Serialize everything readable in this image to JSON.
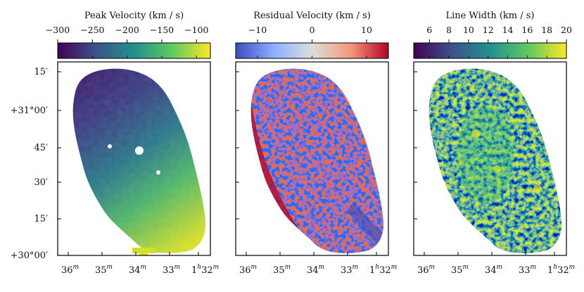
{
  "figure": {
    "panels": [
      {
        "id": "peak",
        "colorbar_label": "Peak Velocity (km / s)",
        "colorbar_ticks": [
          "−300",
          "−250",
          "−200",
          "−150",
          "−100"
        ],
        "colorbar_tick_values": [
          -300,
          -250,
          -200,
          -150,
          -100
        ],
        "colorbar_range": [
          -300,
          -80
        ],
        "colormap": "viridis",
        "colormap_stops": [
          "#440154",
          "#3b528b",
          "#21918c",
          "#5ec962",
          "#fde725"
        ]
      },
      {
        "id": "residual",
        "colorbar_label": "Residual Velocity (km / s)",
        "colorbar_ticks": [
          "−10",
          "0",
          "10"
        ],
        "colorbar_tick_values": [
          -10,
          0,
          10
        ],
        "colorbar_range": [
          -14,
          14
        ],
        "colormap": "coolwarm",
        "colormap_stops": [
          "#3b4cc0",
          "#8db0fe",
          "#dddddd",
          "#f49a7b",
          "#b40426"
        ]
      },
      {
        "id": "width",
        "colorbar_label": "Line Width (km / s)",
        "colorbar_ticks": [
          "6",
          "8",
          "10",
          "12",
          "14",
          "16",
          "18",
          "20"
        ],
        "colorbar_tick_values": [
          6,
          8,
          10,
          12,
          14,
          16,
          18,
          20
        ],
        "colorbar_range": [
          4.4,
          20
        ],
        "colormap": "viridis",
        "colormap_stops": [
          "#440154",
          "#3b528b",
          "#21918c",
          "#5ec962",
          "#fde725"
        ]
      }
    ],
    "y_ticks": [
      "15′",
      "+31°00′",
      "45′",
      "30′",
      "15′",
      "+30°00′"
    ],
    "x_ticks": [
      {
        "main": "36",
        "sup": "m"
      },
      {
        "main": "35",
        "sup": "m"
      },
      {
        "main": "34",
        "sup": "m"
      },
      {
        "main": "33",
        "sup": "m"
      },
      {
        "main": "1",
        "sup": "h",
        "main2": "32",
        "sup2": "m"
      }
    ]
  }
}
